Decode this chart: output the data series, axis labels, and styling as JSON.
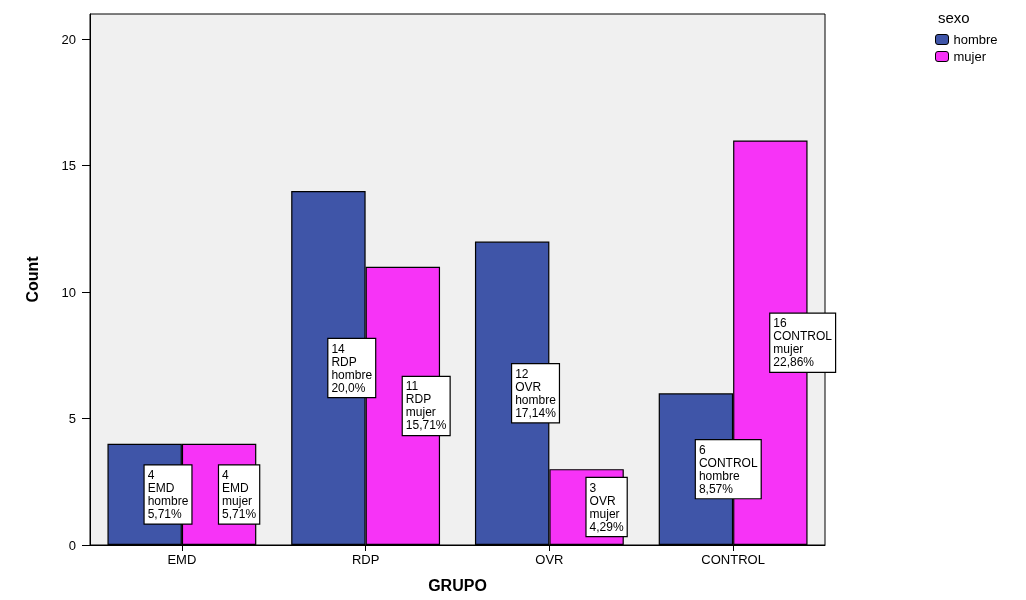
{
  "chart_data": {
    "type": "bar",
    "xlabel": "GRUPO",
    "ylabel": "Count",
    "legend_title": "sexo",
    "legend": "top right",
    "grid": false,
    "categories": [
      "EMD",
      "RDP",
      "OVR",
      "CONTROL"
    ],
    "ylim": [
      0,
      21
    ],
    "yticks": [
      0,
      5,
      10,
      15,
      20
    ],
    "series": [
      {
        "name": "hombre",
        "color": "#3f55a8",
        "values": [
          4,
          14,
          12,
          6
        ],
        "value_labels": [
          "4\nEMD\nhombre\n5,71%",
          "14\nRDP\nhombre\n20,0%",
          "12\nOVR\nhombre\n17,14%",
          "6\nCONTROL\nhombre\n8,57%"
        ]
      },
      {
        "name": "mujer",
        "color": "#f733f7",
        "values": [
          4,
          11,
          3,
          16
        ],
        "value_labels": [
          "4\nEMD\nmujer\n5,71%",
          "11\nRDP\nmujer\n15,71%",
          "3\nOVR\nmujer\n4,29%",
          "16\nCONTROL\nmujer\n22,86%"
        ]
      }
    ]
  }
}
